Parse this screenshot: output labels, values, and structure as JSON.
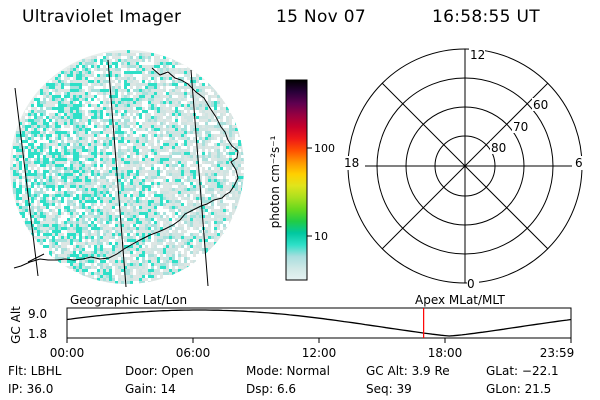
{
  "header": {
    "instrument": "Ultraviolet Imager",
    "date": "15 Nov 07",
    "time": "16:58:55 UT"
  },
  "colorbar": {
    "label": "photon cm⁻²s⁻¹",
    "ticks": [
      "100",
      "10"
    ],
    "colors": [
      "#e6f2f2",
      "#cfe8e6",
      "#a8dede",
      "#2ee0c8",
      "#00c8a0",
      "#22cc44",
      "#66d81e",
      "#aae01e",
      "#e0e41c",
      "#ffd000",
      "#ff9800",
      "#ff5000",
      "#ee1818",
      "#c8002a",
      "#980040",
      "#600050",
      "#280038",
      "#000000"
    ]
  },
  "polar_plot": {
    "labels": {
      "top": "12",
      "left": "18",
      "right": "6",
      "bottom": "0",
      "lat60": "60",
      "lat70": "70",
      "lat80": "80"
    }
  },
  "orbit_panel": {
    "left_title": "Geographic Lat/Lon",
    "right_title": "Apex MLat/MLT",
    "ylabel": "GC Alt",
    "ymax": "9.0",
    "ymin": "1.8",
    "xticks": [
      "00:00",
      "06:00",
      "12:00",
      "18:00",
      "23:59"
    ],
    "current_time_fraction": 0.7076,
    "marker_color": "#ff0000"
  },
  "info": {
    "filter": "Flt: LBHL",
    "ip": "IP: 36.0",
    "door": "Door: Open",
    "gain": "Gain: 14",
    "mode": "Mode: Normal",
    "dsp": "Dsp:     6.6",
    "gc_alt": "GC Alt: 3.9 Re",
    "seq": "Seq: 39",
    "glat": "GLat: −22.1",
    "glon": "GLon:  21.5"
  }
}
